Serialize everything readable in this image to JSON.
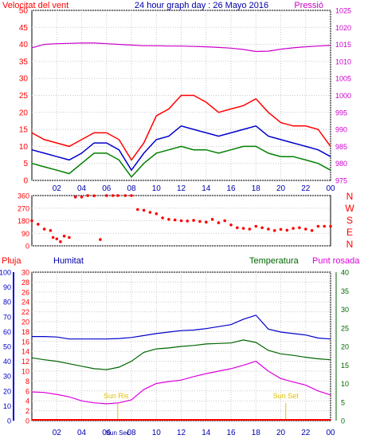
{
  "chart_data": [
    {
      "type": "line",
      "title": "24 hour graph day : 26 Mayo 2016",
      "left_label": "Velocitat del vent",
      "right_label": "Pressió",
      "ylim_left": [
        0,
        50
      ],
      "yticks_left": [
        0,
        5,
        10,
        15,
        20,
        25,
        30,
        35,
        40,
        45,
        50
      ],
      "ylim_right": [
        975,
        1025
      ],
      "yticks_right": [
        975,
        980,
        985,
        990,
        995,
        1000,
        1005,
        1010,
        1015,
        1020,
        1025
      ],
      "x_ticks": [
        "02",
        "04",
        "06",
        "08",
        "10",
        "12",
        "14",
        "16",
        "18",
        "20",
        "22",
        "00"
      ],
      "x": [
        0,
        1,
        2,
        3,
        4,
        5,
        6,
        7,
        8,
        9,
        10,
        11,
        12,
        13,
        14,
        15,
        16,
        17,
        18,
        19,
        20,
        21,
        22,
        23,
        24
      ],
      "series": [
        {
          "key": "gust",
          "color": "#ff0000",
          "axis": "left",
          "values": [
            14,
            12,
            11,
            10,
            12,
            14,
            14,
            12,
            6,
            11,
            19,
            21,
            25,
            25,
            23,
            20,
            21,
            22,
            24,
            20,
            17,
            16,
            16,
            15,
            10
          ]
        },
        {
          "key": "avg",
          "color": "#0000cc",
          "axis": "left",
          "values": [
            9,
            8,
            7,
            6,
            8,
            11,
            11,
            9,
            3,
            8,
            12,
            13,
            16,
            15,
            14,
            13,
            14,
            15,
            16,
            13,
            12,
            11,
            10,
            9,
            7
          ]
        },
        {
          "key": "min",
          "color": "#008000",
          "axis": "left",
          "values": [
            5,
            4,
            3,
            2,
            5,
            8,
            8,
            6,
            1,
            5,
            8,
            9,
            10,
            9,
            9,
            8,
            9,
            10,
            10,
            8,
            7,
            7,
            6,
            5,
            3
          ]
        },
        {
          "key": "pressure",
          "color": "#cc00cc",
          "axis": "right",
          "values": [
            1014,
            1015,
            1015.2,
            1015.3,
            1015.4,
            1015.4,
            1015.2,
            1015,
            1014.8,
            1014.6,
            1014.6,
            1014.5,
            1014.5,
            1014.4,
            1014.3,
            1014.1,
            1013.9,
            1013.5,
            1012.9,
            1013,
            1013.6,
            1014,
            1014.3,
            1014.5,
            1014.7
          ]
        }
      ]
    },
    {
      "type": "scatter",
      "y_labels": [
        "360",
        "270",
        "180",
        "90",
        "0"
      ],
      "compass": [
        "N",
        "W",
        "S",
        "E",
        "N"
      ],
      "ylim": [
        0,
        360
      ],
      "color": "#ff0000",
      "x": [
        0,
        0.5,
        1,
        1.5,
        1.7,
        2,
        2.3,
        2.6,
        3,
        3.5,
        4,
        4.5,
        5,
        5.5,
        6,
        6.5,
        6.9,
        7.5,
        8,
        8.5,
        9,
        9.5,
        10,
        10.5,
        11,
        11.5,
        12,
        12.5,
        13,
        13.5,
        14,
        14.5,
        15,
        15.5,
        16,
        16.5,
        17,
        17.5,
        18,
        18.5,
        19,
        19.5,
        20,
        20.5,
        21,
        21.5,
        22,
        22.5,
        23,
        23.5,
        24
      ],
      "values": [
        180,
        155,
        120,
        110,
        60,
        50,
        30,
        70,
        60,
        350,
        350,
        360,
        358,
        45,
        360,
        360,
        360,
        360,
        360,
        260,
        255,
        240,
        230,
        200,
        190,
        185,
        180,
        178,
        182,
        175,
        170,
        190,
        165,
        180,
        150,
        130,
        125,
        120,
        140,
        130,
        120,
        110,
        118,
        112,
        125,
        130,
        120,
        110,
        140,
        140,
        140
      ]
    },
    {
      "type": "line",
      "labels": {
        "rain": "Pluja",
        "humidity": "Humitat",
        "temperature": "Temperatura",
        "dewpoint": "Punt rosada"
      },
      "rain_ylim": [
        0,
        100
      ],
      "rain_ticks": [
        0,
        10,
        20,
        30,
        40,
        50,
        60,
        70,
        80,
        90,
        100
      ],
      "left_ylim": [
        0,
        30
      ],
      "left_ticks": [
        0,
        2,
        4,
        6,
        8,
        10,
        12,
        14,
        16,
        18,
        20,
        22,
        24,
        26,
        28,
        30
      ],
      "right_ylim": [
        0,
        40
      ],
      "right_ticks": [
        0,
        5,
        10,
        15,
        20,
        25,
        30,
        35,
        40
      ],
      "x_ticks": [
        "02",
        "04",
        "06",
        "08",
        "10",
        "12",
        "14",
        "16",
        "18",
        "20",
        "22",
        "00"
      ],
      "x": [
        0,
        1,
        2,
        3,
        4,
        5,
        6,
        7,
        8,
        9,
        10,
        11,
        12,
        13,
        14,
        15,
        16,
        17,
        18,
        19,
        20,
        21,
        22,
        23,
        24
      ],
      "sun_rise_label": "Sun Ris",
      "sun_set_label": "Sun Set",
      "sun_rise_x": 6.9,
      "sun_set_x": 20.4,
      "sun_axis_label": "Sun Sec",
      "series": [
        {
          "key": "humidity",
          "color": "#0000cc",
          "axis": "left",
          "values": [
            17,
            17,
            16.9,
            16.5,
            16.5,
            16.5,
            16.5,
            16.6,
            16.8,
            17.2,
            17.6,
            17.9,
            18.2,
            18.3,
            18.6,
            19.0,
            19.4,
            20.5,
            21.3,
            18.5,
            17.9,
            17.6,
            17.3,
            16.7,
            16.5
          ]
        },
        {
          "key": "temperature",
          "color": "#006600",
          "axis": "left",
          "values": [
            12.7,
            12.3,
            12.0,
            11.5,
            11.0,
            10.5,
            10.3,
            10.8,
            12.0,
            13.8,
            14.5,
            14.7,
            15.0,
            15.2,
            15.5,
            15.6,
            15.7,
            16.3,
            15.8,
            14.2,
            13.5,
            13.2,
            12.8,
            12.5,
            12.3
          ]
        },
        {
          "key": "dewpoint",
          "color": "#dd00dd",
          "axis": "left",
          "values": [
            5.8,
            5.7,
            5.3,
            4.8,
            4.0,
            3.6,
            3.4,
            3.6,
            4.2,
            6.3,
            7.5,
            7.9,
            8.2,
            8.9,
            9.5,
            10.0,
            10.5,
            11.2,
            12.0,
            10.0,
            8.5,
            7.8,
            7.2,
            6.0,
            5.2
          ]
        }
      ]
    }
  ]
}
